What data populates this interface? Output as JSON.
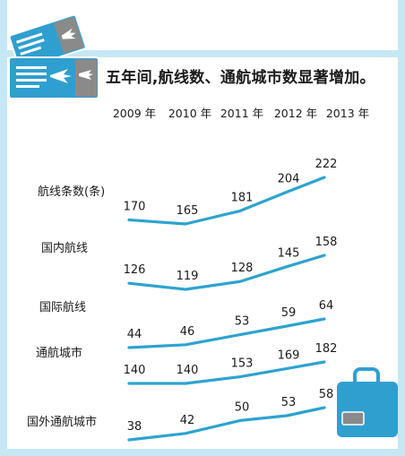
{
  "title": "五年间,航线数、通航城市数显著增加。",
  "chart_data": {
    "type": "line",
    "title": "五年间,航线数、通航城市数显著增加。",
    "categories": [
      "2009 年",
      "2010 年",
      "2011 年",
      "2012 年",
      "2013 年"
    ],
    "series": [
      {
        "name": "航线条数(条)",
        "values": [
          170,
          165,
          181,
          204,
          222
        ]
      },
      {
        "name": "国内航线",
        "values": [
          126,
          119,
          128,
          145,
          158
        ]
      },
      {
        "name": "国际航线",
        "values": [
          44,
          46,
          53,
          59,
          64
        ]
      },
      {
        "name": "通航城市",
        "values": [
          140,
          140,
          153,
          169,
          182
        ]
      },
      {
        "name": "国外通航城市",
        "values": [
          38,
          42,
          50,
          53,
          58
        ]
      }
    ],
    "line_color": "#2ea3cf",
    "grid": false,
    "legend": "none"
  },
  "colors": {
    "frame": "#c6e7f4",
    "ticket": "#2f9fd0",
    "ticket_gray": "#8a8a8a",
    "suitcase": "#2f9fd0"
  },
  "icons": [
    "airplane-ticket-icon",
    "suitcase-icon"
  ]
}
